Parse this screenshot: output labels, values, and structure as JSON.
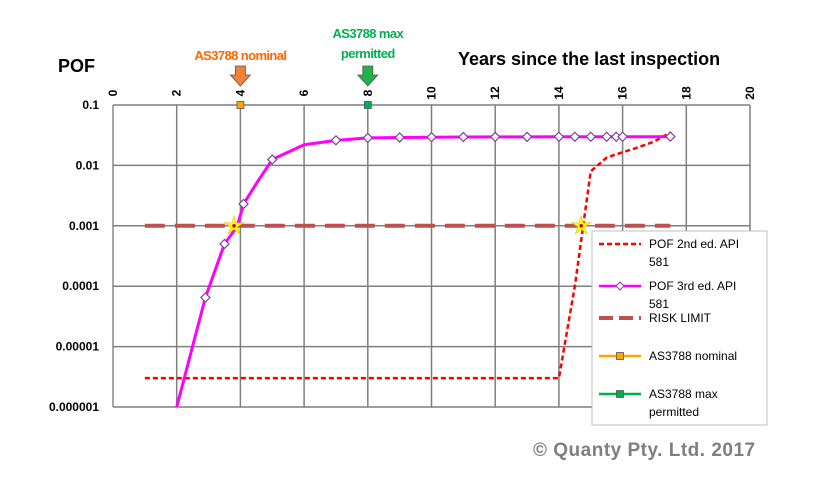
{
  "chart_data": {
    "type": "line",
    "y_title": "POF",
    "x_title": "Years since the last inspection",
    "x_ticks": [
      "0",
      "2",
      "4",
      "6",
      "8",
      "10",
      "12",
      "14",
      "16",
      "18",
      "20"
    ],
    "y_ticks": [
      "0.1",
      "0.01",
      "0.001",
      "0.0001",
      "0.00001",
      "0.000001"
    ],
    "xlim": [
      0,
      20
    ],
    "ylim": [
      1e-06,
      0.1
    ],
    "y_scale": "log",
    "x_axis_position": "top",
    "grid": true,
    "legend_position": "bottom-right",
    "series": [
      {
        "name": "POF 2nd ed. API 581",
        "color": "#ff0000",
        "style": "dashed",
        "marker": "none",
        "x": [
          1,
          14,
          14.5,
          15,
          15.5,
          16,
          16.5,
          17,
          17.5
        ],
        "y": [
          3e-06,
          3e-06,
          0.0001,
          0.008,
          0.0135,
          0.0165,
          0.02,
          0.025,
          0.035
        ]
      },
      {
        "name": "POF 3rd ed. API 581",
        "color": "#ff00ff",
        "style": "solid",
        "marker": "diamond",
        "x": [
          2,
          2.9,
          3.5,
          3.9,
          4.1,
          4.5,
          5,
          6,
          7,
          8,
          9,
          10,
          11,
          12,
          13,
          14,
          14.5,
          15,
          15.5,
          15.8,
          16,
          17,
          17.5
        ],
        "y": [
          1e-06,
          6.5e-05,
          0.0005,
          0.00098,
          0.0023,
          0.005,
          0.0125,
          0.022,
          0.026,
          0.0285,
          0.029,
          0.0293,
          0.0295,
          0.0296,
          0.0297,
          0.0298,
          0.0298,
          0.0298,
          0.0298,
          0.0298,
          0.0298,
          0.0298,
          0.03
        ],
        "marker_x": [
          2.9,
          3.5,
          4.1,
          5,
          7,
          8,
          9,
          10,
          11,
          12,
          13,
          14,
          14.5,
          15,
          15.5,
          15.8,
          16,
          17.5
        ],
        "marker_y": [
          6.5e-05,
          0.0005,
          0.0023,
          0.0125,
          0.026,
          0.0285,
          0.029,
          0.0293,
          0.0295,
          0.0296,
          0.0297,
          0.0298,
          0.0298,
          0.0298,
          0.0298,
          0.0298,
          0.0298,
          0.03
        ]
      },
      {
        "name": "RISK LIMIT",
        "color": "#c0504d",
        "style": "longdash",
        "marker": "none",
        "x": [
          1,
          17.5
        ],
        "y": [
          0.001,
          0.001
        ]
      },
      {
        "name": "AS3788 nominal",
        "color": "#ffa500",
        "style": "solid",
        "marker": "square",
        "x": [
          4
        ],
        "y": [
          0.1
        ]
      },
      {
        "name": "AS3788 max permitted",
        "color": "#00b050",
        "style": "solid",
        "marker": "square",
        "x": [
          8
        ],
        "y": [
          0.1
        ]
      }
    ],
    "star_markers": [
      {
        "x": 3.8,
        "y": 0.001
      },
      {
        "x": 14.7,
        "y": 0.001
      }
    ],
    "annotations": [
      {
        "text": "AS3788 nominal",
        "x": 4,
        "color": "#ff6600",
        "arrow_color": "#f0803c"
      },
      {
        "text": "AS3788 max permitted",
        "x": 8,
        "color": "#00b050",
        "arrow_color": "#1fb34a"
      }
    ]
  },
  "footer": {
    "copyright": "© Quanty Pty. Ltd. 2017"
  }
}
